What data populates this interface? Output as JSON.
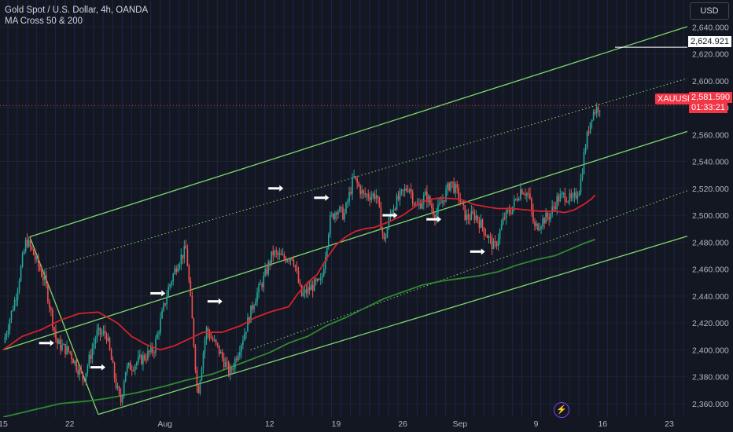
{
  "legend": {
    "title": "Gold Spot / U.S. Dollar, 4h, OANDA",
    "indicator": "MA Cross 50 & 200"
  },
  "toolbar": {
    "currency": "USD"
  },
  "price_tags": {
    "level": "2,624.921",
    "symbol": "XAUUSD",
    "last_price": "2,581.590",
    "countdown": "01:33:21"
  },
  "icons": {
    "flash": "lightning-icon"
  },
  "colors": {
    "background": "#131722",
    "up": "#26a69a",
    "down": "#ef5350",
    "ma50": "#d3222b",
    "ma200": "#2f8a2f",
    "channel": "#7fd86b",
    "price_tag": "#f23645",
    "axis_text": "#b2b5be"
  },
  "chart_data": {
    "type": "candlestick",
    "symbol": "XAUUSD",
    "timeframe": "4h",
    "yaxis": {
      "min": 2350,
      "max": 2660,
      "ticks": [
        2360,
        2380,
        2400,
        2420,
        2440,
        2460,
        2480,
        2500,
        2520,
        2540,
        2560,
        2580,
        2600,
        2620,
        2640
      ]
    },
    "xaxis": {
      "labels": [
        {
          "text": "15",
          "t": 0
        },
        {
          "text": "22",
          "t": 7
        },
        {
          "text": "Aug",
          "t": 17
        },
        {
          "text": "12",
          "t": 28
        },
        {
          "text": "19",
          "t": 35
        },
        {
          "text": "26",
          "t": 42
        },
        {
          "text": "Sep",
          "t": 48
        },
        {
          "text": "9",
          "t": 56
        },
        {
          "text": "16",
          "t": 63
        },
        {
          "text": "23",
          "t": 70
        }
      ],
      "t_max": 81.5
    },
    "candle_range": {
      "t_start": 0.2,
      "t_end": 62.8
    },
    "price_path": [
      [
        0,
        2400
      ],
      [
        1.5,
        2440
      ],
      [
        2.6,
        2482
      ],
      [
        3.3,
        2472
      ],
      [
        4.6,
        2450
      ],
      [
        5.8,
        2405
      ],
      [
        7.2,
        2398
      ],
      [
        8.6,
        2378
      ],
      [
        10,
        2412
      ],
      [
        11,
        2412
      ],
      [
        12,
        2375
      ],
      [
        12.5,
        2360
      ],
      [
        13,
        2385
      ],
      [
        14.5,
        2392
      ],
      [
        16,
        2400
      ],
      [
        17.5,
        2445
      ],
      [
        18.5,
        2465
      ],
      [
        19.4,
        2475
      ],
      [
        20,
        2425
      ],
      [
        20.6,
        2366
      ],
      [
        21.5,
        2415
      ],
      [
        22.8,
        2400
      ],
      [
        24,
        2382
      ],
      [
        25.5,
        2412
      ],
      [
        26.6,
        2438
      ],
      [
        27.5,
        2452
      ],
      [
        28.5,
        2472
      ],
      [
        29.6,
        2468
      ],
      [
        30.6,
        2470
      ],
      [
        31.5,
        2440
      ],
      [
        32.8,
        2448
      ],
      [
        33.6,
        2450
      ],
      [
        34.5,
        2496
      ],
      [
        35.2,
        2505
      ],
      [
        36,
        2500
      ],
      [
        37,
        2528
      ],
      [
        38,
        2515
      ],
      [
        39.4,
        2515
      ],
      [
        40.2,
        2480
      ],
      [
        41,
        2505
      ],
      [
        42,
        2515
      ],
      [
        42.8,
        2522
      ],
      [
        43.6,
        2505
      ],
      [
        44.6,
        2515
      ],
      [
        45.6,
        2500
      ],
      [
        46.4,
        2512
      ],
      [
        47.2,
        2525
      ],
      [
        48,
        2515
      ],
      [
        48.8,
        2498
      ],
      [
        49.8,
        2500
      ],
      [
        50.8,
        2488
      ],
      [
        51.8,
        2475
      ],
      [
        52.8,
        2498
      ],
      [
        53.6,
        2505
      ],
      [
        54.6,
        2520
      ],
      [
        55.4,
        2515
      ],
      [
        56,
        2490
      ],
      [
        56.8,
        2496
      ],
      [
        57.6,
        2500
      ],
      [
        58.4,
        2512
      ],
      [
        59.2,
        2515
      ],
      [
        60,
        2510
      ],
      [
        60.8,
        2522
      ],
      [
        61.3,
        2550
      ],
      [
        62,
        2575
      ],
      [
        62.8,
        2581.59
      ]
    ],
    "series": [
      {
        "name": "MA Cross 50 & 200",
        "key": "ma50",
        "points": [
          [
            0,
            2400
          ],
          [
            2,
            2410
          ],
          [
            4,
            2415
          ],
          [
            6,
            2422
          ],
          [
            8,
            2427
          ],
          [
            10,
            2428
          ],
          [
            12,
            2420
          ],
          [
            13.5,
            2410
          ],
          [
            15,
            2404
          ],
          [
            16.5,
            2400
          ],
          [
            18,
            2403
          ],
          [
            19.5,
            2408
          ],
          [
            21,
            2413
          ],
          [
            23,
            2413
          ],
          [
            25,
            2418
          ],
          [
            26.5,
            2424
          ],
          [
            28,
            2428
          ],
          [
            30,
            2432
          ],
          [
            31,
            2442
          ],
          [
            32,
            2450
          ],
          [
            33,
            2456
          ],
          [
            34,
            2468
          ],
          [
            35,
            2478
          ],
          [
            36,
            2484
          ],
          [
            37,
            2488
          ],
          [
            38,
            2490
          ],
          [
            39,
            2491
          ],
          [
            40.5,
            2495
          ],
          [
            42,
            2500
          ],
          [
            43,
            2505
          ],
          [
            44,
            2510
          ],
          [
            45,
            2512
          ],
          [
            46,
            2513
          ],
          [
            48,
            2512
          ],
          [
            49.5,
            2508
          ],
          [
            51,
            2506
          ],
          [
            52,
            2505
          ],
          [
            53.5,
            2505
          ],
          [
            55,
            2504
          ],
          [
            56.5,
            2503
          ],
          [
            58,
            2503
          ],
          [
            59,
            2502
          ],
          [
            60,
            2504
          ],
          [
            61,
            2508
          ],
          [
            61.8,
            2512
          ],
          [
            62.2,
            2515
          ]
        ]
      },
      {
        "name": "MA Cross 50 & 200",
        "key": "ma200",
        "points": [
          [
            0,
            2350
          ],
          [
            3,
            2355
          ],
          [
            6,
            2360
          ],
          [
            9,
            2362
          ],
          [
            11,
            2364
          ],
          [
            14,
            2368
          ],
          [
            17,
            2373
          ],
          [
            19,
            2377
          ],
          [
            22,
            2382
          ],
          [
            25,
            2390
          ],
          [
            28,
            2398
          ],
          [
            30,
            2405
          ],
          [
            32,
            2410
          ],
          [
            34,
            2418
          ],
          [
            36,
            2424
          ],
          [
            38,
            2431
          ],
          [
            40,
            2438
          ],
          [
            42,
            2443
          ],
          [
            44,
            2448
          ],
          [
            46,
            2451
          ],
          [
            48,
            2453
          ],
          [
            50,
            2455
          ],
          [
            52,
            2458
          ],
          [
            54,
            2463
          ],
          [
            56,
            2467
          ],
          [
            58,
            2470
          ],
          [
            60,
            2476
          ],
          [
            61,
            2479
          ],
          [
            62.2,
            2482
          ]
        ]
      }
    ],
    "channels": [
      {
        "style": "solid",
        "from": [
          2.8,
          2484
        ],
        "to": [
          81.5,
          2662
        ]
      },
      {
        "style": "dotted",
        "from": [
          4.5,
          2460
        ],
        "to": [
          81.5,
          2622
        ]
      },
      {
        "style": "solid",
        "from": [
          0,
          2400
        ],
        "to": [
          81.5,
          2584
        ]
      },
      {
        "style": "dotted",
        "from": [
          26,
          2400
        ],
        "to": [
          81.5,
          2543
        ]
      },
      {
        "style": "solid",
        "from": [
          10,
          2352
        ],
        "to": [
          81.5,
          2505
        ]
      },
      {
        "style": "solid",
        "from": [
          2.8,
          2484
        ],
        "to": [
          10,
          2352
        ]
      }
    ],
    "level_line": {
      "price": 2624.921,
      "t_from": 64.3
    },
    "last_price_line": {
      "price": 2581.59
    },
    "markers": [
      {
        "t": 4.6,
        "price": 2405
      },
      {
        "t": 10,
        "price": 2387
      },
      {
        "t": 16.3,
        "price": 2442
      },
      {
        "t": 22.3,
        "price": 2436
      },
      {
        "t": 28.7,
        "price": 2520
      },
      {
        "t": 33.5,
        "price": 2513
      },
      {
        "t": 40.7,
        "price": 2500
      },
      {
        "t": 45.3,
        "price": 2497
      },
      {
        "t": 49.9,
        "price": 2473
      }
    ]
  }
}
